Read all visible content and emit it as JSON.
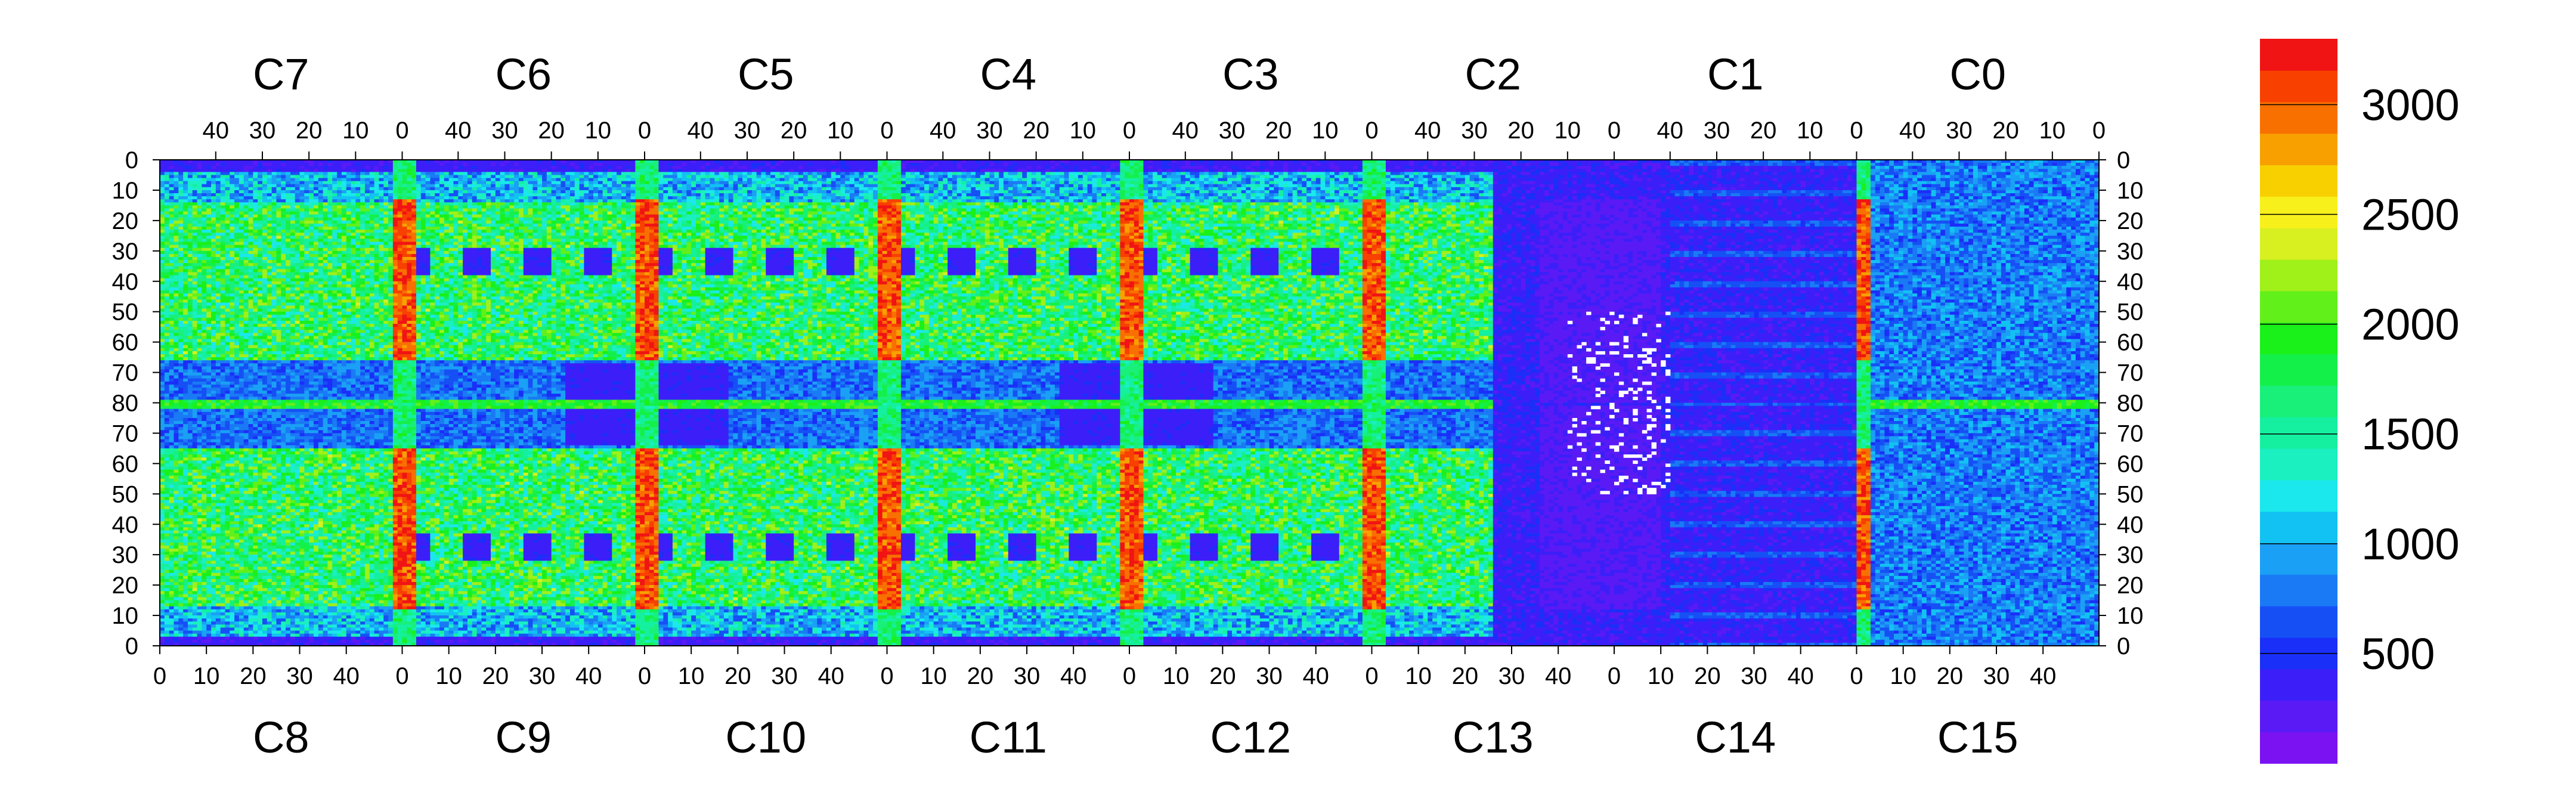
{
  "chart_data": {
    "type": "heatmap",
    "title": "",
    "chips_top": [
      "C7",
      "C6",
      "C5",
      "C4",
      "C3",
      "C2",
      "C1",
      "C0"
    ],
    "chips_bottom": [
      "C8",
      "C9",
      "C10",
      "C11",
      "C12",
      "C13",
      "C14",
      "C15"
    ],
    "row_tick_labels": [
      "0",
      "10",
      "20",
      "30",
      "40",
      "50",
      "60",
      "70",
      "80",
      "70",
      "60",
      "50",
      "40",
      "30",
      "20",
      "10",
      "0"
    ],
    "top_col_tick_labels": [
      "40",
      "30",
      "20",
      "10",
      "0"
    ],
    "bottom_col_tick_labels": [
      "0",
      "10",
      "20",
      "30",
      "40"
    ],
    "columns_per_chip": 52,
    "rows_per_half": 80,
    "colorbar": {
      "min": 0,
      "max": 3300,
      "tick_values": [
        500,
        1000,
        1500,
        2000,
        2500,
        3000
      ],
      "tick_labels": [
        "500",
        "1000",
        "1500",
        "2000",
        "2500",
        "3000"
      ],
      "levels": 20,
      "colors": [
        "#7a12f2",
        "#5a1af5",
        "#3c1ff8",
        "#1a2ff8",
        "#1650f5",
        "#1a7af5",
        "#1aa0f5",
        "#12c2f2",
        "#1ae8ec",
        "#1af0c0",
        "#14f0a0",
        "#18f07a",
        "#14f04a",
        "#1af01a",
        "#62f01a",
        "#a0f01a",
        "#d8f020",
        "#f8f01a",
        "#f8d000",
        "#f8a000",
        "#f87000",
        "#f84000",
        "#f01414"
      ]
    },
    "features": {
      "hot_columns_at_chip_boundary": true,
      "horizontal_band_at_row_80": true,
      "low_value_region": "C13-C14",
      "dead_pixels_white": true
    }
  }
}
